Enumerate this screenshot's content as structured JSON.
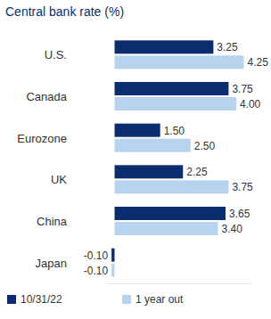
{
  "chart_data": {
    "type": "bar",
    "title": "Central bank rate (%)",
    "orientation": "horizontal",
    "categories": [
      "U.S.",
      "Canada",
      "Eurozone",
      "UK",
      "China",
      "Japan"
    ],
    "series": [
      {
        "name": "10/31/22",
        "color": "#0b2d6f",
        "values": [
          3.25,
          3.75,
          1.5,
          2.25,
          3.65,
          -0.1
        ],
        "value_labels": [
          "3.25",
          "3.75",
          "1.50",
          "2.25",
          "3.65",
          "-0.10"
        ]
      },
      {
        "name": "1 year out",
        "color": "#b8d3ee",
        "values": [
          4.25,
          4.0,
          2.5,
          3.75,
          3.4,
          -0.1
        ],
        "value_labels": [
          "4.25",
          "4.00",
          "2.50",
          "3.75",
          "3.40",
          "-0.10"
        ]
      }
    ],
    "xlim": [
      -0.25,
      4.5
    ],
    "grid": false,
    "legend": "bottom",
    "data_labels": true,
    "tick_labels": "y"
  }
}
